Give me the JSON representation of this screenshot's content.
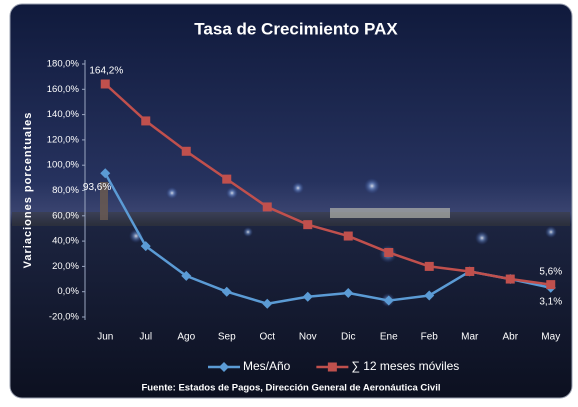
{
  "chart_data": {
    "type": "line",
    "title": "Tasa de Crecimiento PAX",
    "y_label": "Variaciones porcentuales",
    "source": "Fuente: Estados de Pagos, Dirección General de Aeronáutica Civil",
    "categories": [
      "Jun",
      "Jul",
      "Ago",
      "Sep",
      "Oct",
      "Nov",
      "Dic",
      "Ene",
      "Feb",
      "Mar",
      "Abr",
      "May"
    ],
    "series": [
      {
        "name": "Mes/Año",
        "color": "#5b9bd5",
        "marker": "diamond",
        "values": [
          93.6,
          36,
          12.5,
          0,
          -9.5,
          -4,
          -1,
          -7,
          -3,
          16,
          10,
          3.1
        ],
        "value_labels": [
          "93,6%",
          null,
          null,
          null,
          null,
          null,
          null,
          null,
          null,
          null,
          null,
          "3,1%"
        ]
      },
      {
        "name": "∑ 12 meses móviles",
        "color": "#c0504d",
        "marker": "square",
        "values": [
          164.2,
          135,
          111,
          89,
          67,
          53,
          44,
          31,
          20,
          16,
          10,
          5.6
        ],
        "value_labels": [
          "164,2%",
          null,
          null,
          null,
          null,
          null,
          null,
          null,
          null,
          null,
          null,
          "5,6%"
        ]
      }
    ],
    "ylim": [
      -20,
      180
    ],
    "yticks": [
      {
        "value": -20,
        "label": "-20,0%"
      },
      {
        "value": 0,
        "label": "0,0%"
      },
      {
        "value": 20,
        "label": "20,0%"
      },
      {
        "value": 40,
        "label": "40,0%"
      },
      {
        "value": 60,
        "label": "60,0%"
      },
      {
        "value": 80,
        "label": "80,0%"
      },
      {
        "value": 100,
        "label": "100,0%"
      },
      {
        "value": 120,
        "label": "120,0%"
      },
      {
        "value": 140,
        "label": "140,0%"
      },
      {
        "value": 160,
        "label": "160,0%"
      },
      {
        "value": 180,
        "label": "180,0%"
      }
    ],
    "grid": false,
    "legend": "bottom"
  }
}
